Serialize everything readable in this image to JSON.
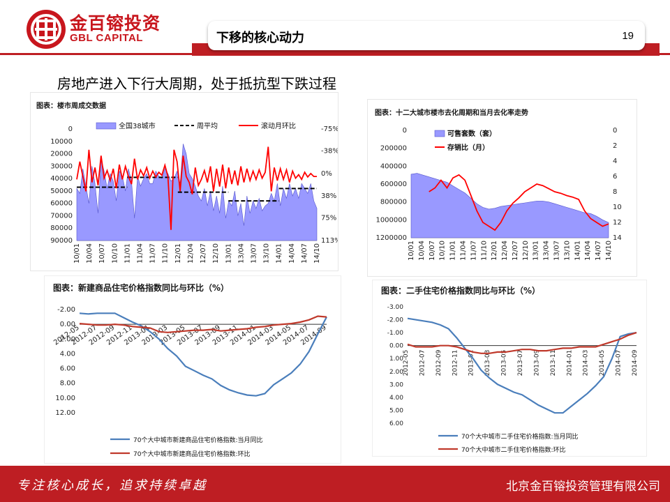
{
  "brand": {
    "name_cn": "金百镕投资",
    "name_en": "GBL CAPITAL",
    "red": "#be1e23"
  },
  "header": {
    "section_title": "下移的核心动力",
    "page_number": "19"
  },
  "headline": "房地产进入下行大周期，处于抵抗型下跌过程",
  "footer": {
    "slogan": "专注核心成长，追求持续卓越",
    "company": "北京金百镕投资管理有限公司"
  },
  "panels": {
    "weekly": {
      "title": "图表：楼市周成交数据"
    },
    "destock": {
      "title": "图表：十二大城市楼市去化周期和当月去化率走势"
    },
    "newhome": {
      "title": "图表：新建商品住宅价格指数同比与环比（%）"
    },
    "resale": {
      "title": "图表：二手住宅价格指数同比与环比（%）"
    }
  },
  "chart_data": [
    {
      "id": "weekly",
      "type": "area",
      "title": "图表：楼市周成交数据",
      "y_left": {
        "ticks": [
          "90000",
          "80000",
          "70000",
          "60000",
          "50000",
          "40000",
          "30000",
          "20000",
          "10000",
          "0"
        ],
        "lim": [
          0,
          90000
        ]
      },
      "y_right": {
        "ticks": [
          "113%",
          "75%",
          "38%",
          "0%",
          "-38%",
          "-75%"
        ],
        "lim": [
          -75,
          113
        ]
      },
      "x_ticks": [
        "10/01",
        "10/04",
        "10/07",
        "10/10",
        "11/01",
        "11/04",
        "11/07",
        "11/10",
        "12/01",
        "12/04",
        "12/07",
        "12/10",
        "13/01",
        "13/04",
        "13/07",
        "13/10",
        "14/01",
        "14/04",
        "14/07",
        "14/10"
      ],
      "legend": [
        "全国38城市",
        "周平均",
        "滚动月环比"
      ],
      "series": [
        {
          "name": "全国38城市",
          "axis": "left",
          "color": "#9999ff",
          "values": [
            48000,
            52000,
            32000,
            46000,
            60000,
            30000,
            44000,
            68000,
            24000,
            34000,
            48000,
            36000,
            42000,
            58000,
            34000,
            38000,
            50000,
            32000,
            42000,
            72000,
            38000,
            46000,
            40000,
            36000,
            44000,
            44000,
            34000,
            38000,
            40000,
            32000,
            36000,
            42000,
            40000,
            34000,
            44000,
            12000,
            20000,
            36000,
            40000,
            46000,
            54000,
            58000,
            48000,
            62000,
            50000,
            66000,
            54000,
            68000,
            46000,
            72000,
            58000,
            62000,
            50000,
            70000,
            60000,
            78000,
            54000,
            68000,
            58000,
            64000,
            56000,
            66000,
            62000,
            60000,
            52000,
            58000,
            44000,
            62000,
            48000,
            56000,
            44000,
            54000,
            48000,
            56000,
            44000,
            48000,
            52000,
            44000,
            58000,
            64000
          ]
        },
        {
          "name": "周平均",
          "axis": "left",
          "color": "#000000",
          "dashed": true,
          "steps": [
            {
              "from": "10/01",
              "to": "11/01",
              "value": 47000
            },
            {
              "from": "11/01",
              "to": "12/01",
              "value": 39000
            },
            {
              "from": "12/01",
              "to": "13/01",
              "value": 51000
            },
            {
              "from": "13/01",
              "to": "14/01",
              "value": 58000
            },
            {
              "from": "14/01",
              "to": "14/10",
              "value": 48000
            }
          ]
        },
        {
          "name": "滚动月环比",
          "axis": "right",
          "color": "#ff0000",
          "values": [
            10,
            -20,
            5,
            30,
            -40,
            15,
            -10,
            20,
            -30,
            8,
            -5,
            12,
            -8,
            25,
            -15,
            10,
            -12,
            5,
            18,
            -25,
            10,
            -6,
            4,
            -10,
            8,
            -4,
            6,
            -2,
            3,
            -14,
            5,
            95,
            -40,
            -20,
            30,
            -30,
            5,
            15,
            35,
            -10,
            20,
            10,
            -5,
            15,
            -12,
            30,
            -8,
            22,
            -15,
            25,
            -10,
            18,
            -5,
            20,
            -12,
            15,
            -8,
            12,
            -4,
            10,
            -6,
            8,
            -2,
            -45,
            30,
            -10,
            12,
            -8,
            10,
            -6,
            15,
            -4,
            8,
            2,
            10,
            -2,
            6,
            0,
            5,
            5
          ]
        }
      ]
    },
    {
      "id": "destock",
      "type": "area",
      "title": "图表：十二大城市楼市去化周期和当月去化率走势",
      "y_left": {
        "ticks": [
          "1200000",
          "1000000",
          "800000",
          "600000",
          "400000",
          "200000",
          "0"
        ],
        "lim": [
          0,
          1200000
        ]
      },
      "y_right": {
        "ticks": [
          "14",
          "12",
          "10",
          "8",
          "6",
          "4",
          "2",
          "0"
        ],
        "lim": [
          0,
          14
        ]
      },
      "x_ticks": [
        "10/01",
        "10/04",
        "10/07",
        "10/10",
        "11/01",
        "11/04",
        "11/07",
        "11/10",
        "12/01",
        "12/04",
        "12/07",
        "12/10",
        "13/01",
        "13/04",
        "13/07",
        "13/10",
        "14/01",
        "14/04",
        "14/07",
        "14/10"
      ],
      "legend": [
        "可售套数（套）",
        "存销比（月）"
      ],
      "series": [
        {
          "name": "可售套数（套）",
          "axis": "left",
          "color": "#9999ff",
          "values": [
            490000,
            480000,
            500000,
            520000,
            540000,
            560000,
            580000,
            620000,
            660000,
            700000,
            760000,
            820000,
            860000,
            880000,
            870000,
            850000,
            840000,
            830000,
            820000,
            810000,
            800000,
            790000,
            790000,
            800000,
            820000,
            840000,
            860000,
            880000,
            900000,
            920000,
            930000,
            960000,
            1000000,
            1030000
          ]
        },
        {
          "name": "存销比（月）",
          "axis": "right",
          "color": "#ff0000",
          "values": [
            null,
            null,
            null,
            8,
            7.5,
            6.5,
            7.5,
            6.2,
            5.8,
            6.5,
            8.5,
            10.5,
            12,
            12.5,
            13,
            12,
            10.5,
            9.5,
            8.8,
            8,
            7.5,
            7,
            7.2,
            7.6,
            8,
            8.2,
            8.5,
            8.7,
            9,
            10.5,
            11.5,
            12,
            12.5,
            12.2
          ]
        }
      ]
    },
    {
      "id": "newhome",
      "type": "line",
      "title": "图表：新建商品住宅价格指数同比与环比（%）",
      "y_ticks": [
        "12.00",
        "10.00",
        "8.00",
        "6.00",
        "4.00",
        "2.00",
        "0.00",
        "-2.00"
      ],
      "ylim": [
        -2,
        12
      ],
      "x": [
        "2012-05",
        "2012-06",
        "2012-07",
        "2012-08",
        "2012-09",
        "2012-10",
        "2012-11",
        "2012-12",
        "2013-01",
        "2013-02",
        "2013-03",
        "2013-04",
        "2013-05",
        "2013-06",
        "2013-07",
        "2013-08",
        "2013-09",
        "2013-10",
        "2013-11",
        "2013-12",
        "2014-01",
        "2014-02",
        "2014-03",
        "2014-04",
        "2014-05",
        "2014-06",
        "2014-07",
        "2014-08",
        "2014-09"
      ],
      "x_tick_labels": [
        "2012-05",
        "2012-07",
        "2012-09",
        "2012-11",
        "2013-01",
        "2013-03",
        "2013-05",
        "2013-07",
        "2013-09",
        "2013-11",
        "2014-01",
        "2014-03",
        "2014-05",
        "2014-07",
        "2014-09"
      ],
      "series": [
        {
          "name": "70个大中城市新建商品住宅价格指数:当月同比",
          "color": "#4a7ebb",
          "values": [
            -1.5,
            -1.4,
            -1.5,
            -1.5,
            -1.5,
            -0.9,
            -0.3,
            0.2,
            1.0,
            2.0,
            3.3,
            4.3,
            5.7,
            6.3,
            6.9,
            7.4,
            8.3,
            8.9,
            9.3,
            9.6,
            9.7,
            9.4,
            8.2,
            7.4,
            6.6,
            5.4,
            3.7,
            1.3,
            -1.0
          ]
        },
        {
          "name": "70个大中城市新建商品住宅价格指数:环比",
          "color": "#c0392b",
          "values": [
            -0.1,
            0.0,
            0.1,
            0.1,
            0.0,
            0.1,
            0.3,
            0.4,
            0.5,
            1.0,
            1.1,
            1.0,
            0.9,
            0.8,
            0.8,
            0.7,
            0.9,
            0.8,
            0.7,
            0.6,
            0.4,
            0.3,
            0.1,
            0.0,
            -0.1,
            -0.3,
            -0.6,
            -1.1,
            -1.0
          ]
        }
      ]
    },
    {
      "id": "resale",
      "type": "line",
      "title": "图表：二手住宅价格指数同比与环比（%）",
      "y_ticks": [
        "6.00",
        "5.00",
        "4.00",
        "3.00",
        "2.00",
        "1.00",
        "0.00",
        "-1.00",
        "-2.00",
        "-3.00"
      ],
      "ylim": [
        -3,
        6
      ],
      "x": [
        "2012-05",
        "2012-06",
        "2012-07",
        "2012-08",
        "2012-09",
        "2012-10",
        "2012-11",
        "2012-12",
        "2013-01",
        "2013-02",
        "2013-03",
        "2013-04",
        "2013-05",
        "2013-06",
        "2013-07",
        "2013-08",
        "2013-09",
        "2013-10",
        "2013-11",
        "2013-12",
        "2014-01",
        "2014-02",
        "2014-03",
        "2014-04",
        "2014-05",
        "2014-06",
        "2014-07",
        "2014-08",
        "2014-09"
      ],
      "x_tick_labels": [
        "2012-05",
        "2012-07",
        "2012-09",
        "2012-11",
        "2013-01",
        "2013-03",
        "2013-05",
        "2013-07",
        "2013-09",
        "2013-11",
        "2014-01",
        "2014-03",
        "2014-05",
        "2014-07",
        "2014-09"
      ],
      "series": [
        {
          "name": "70个大中城市二手住宅价格指数:当月同比",
          "color": "#4a7ebb",
          "values": [
            -2.1,
            -2.0,
            -1.9,
            -1.8,
            -1.6,
            -1.3,
            -0.6,
            0.2,
            1.0,
            1.9,
            2.5,
            3.0,
            3.3,
            3.6,
            3.8,
            4.2,
            4.6,
            4.9,
            5.2,
            5.2,
            4.7,
            4.2,
            3.7,
            3.1,
            2.4,
            1.0,
            -0.7,
            -0.9,
            -1.0
          ]
        },
        {
          "name": "70个大中城市二手住宅价格指数:环比",
          "color": "#c0392b",
          "values": [
            -0.1,
            0.1,
            0.1,
            0.1,
            0.0,
            0.0,
            0.1,
            0.3,
            0.5,
            0.6,
            0.6,
            0.5,
            0.5,
            0.4,
            0.3,
            0.3,
            0.4,
            0.4,
            0.3,
            0.2,
            0.2,
            0.1,
            0.1,
            0.1,
            -0.1,
            -0.3,
            -0.5,
            -0.8,
            -1.0
          ]
        }
      ]
    }
  ]
}
